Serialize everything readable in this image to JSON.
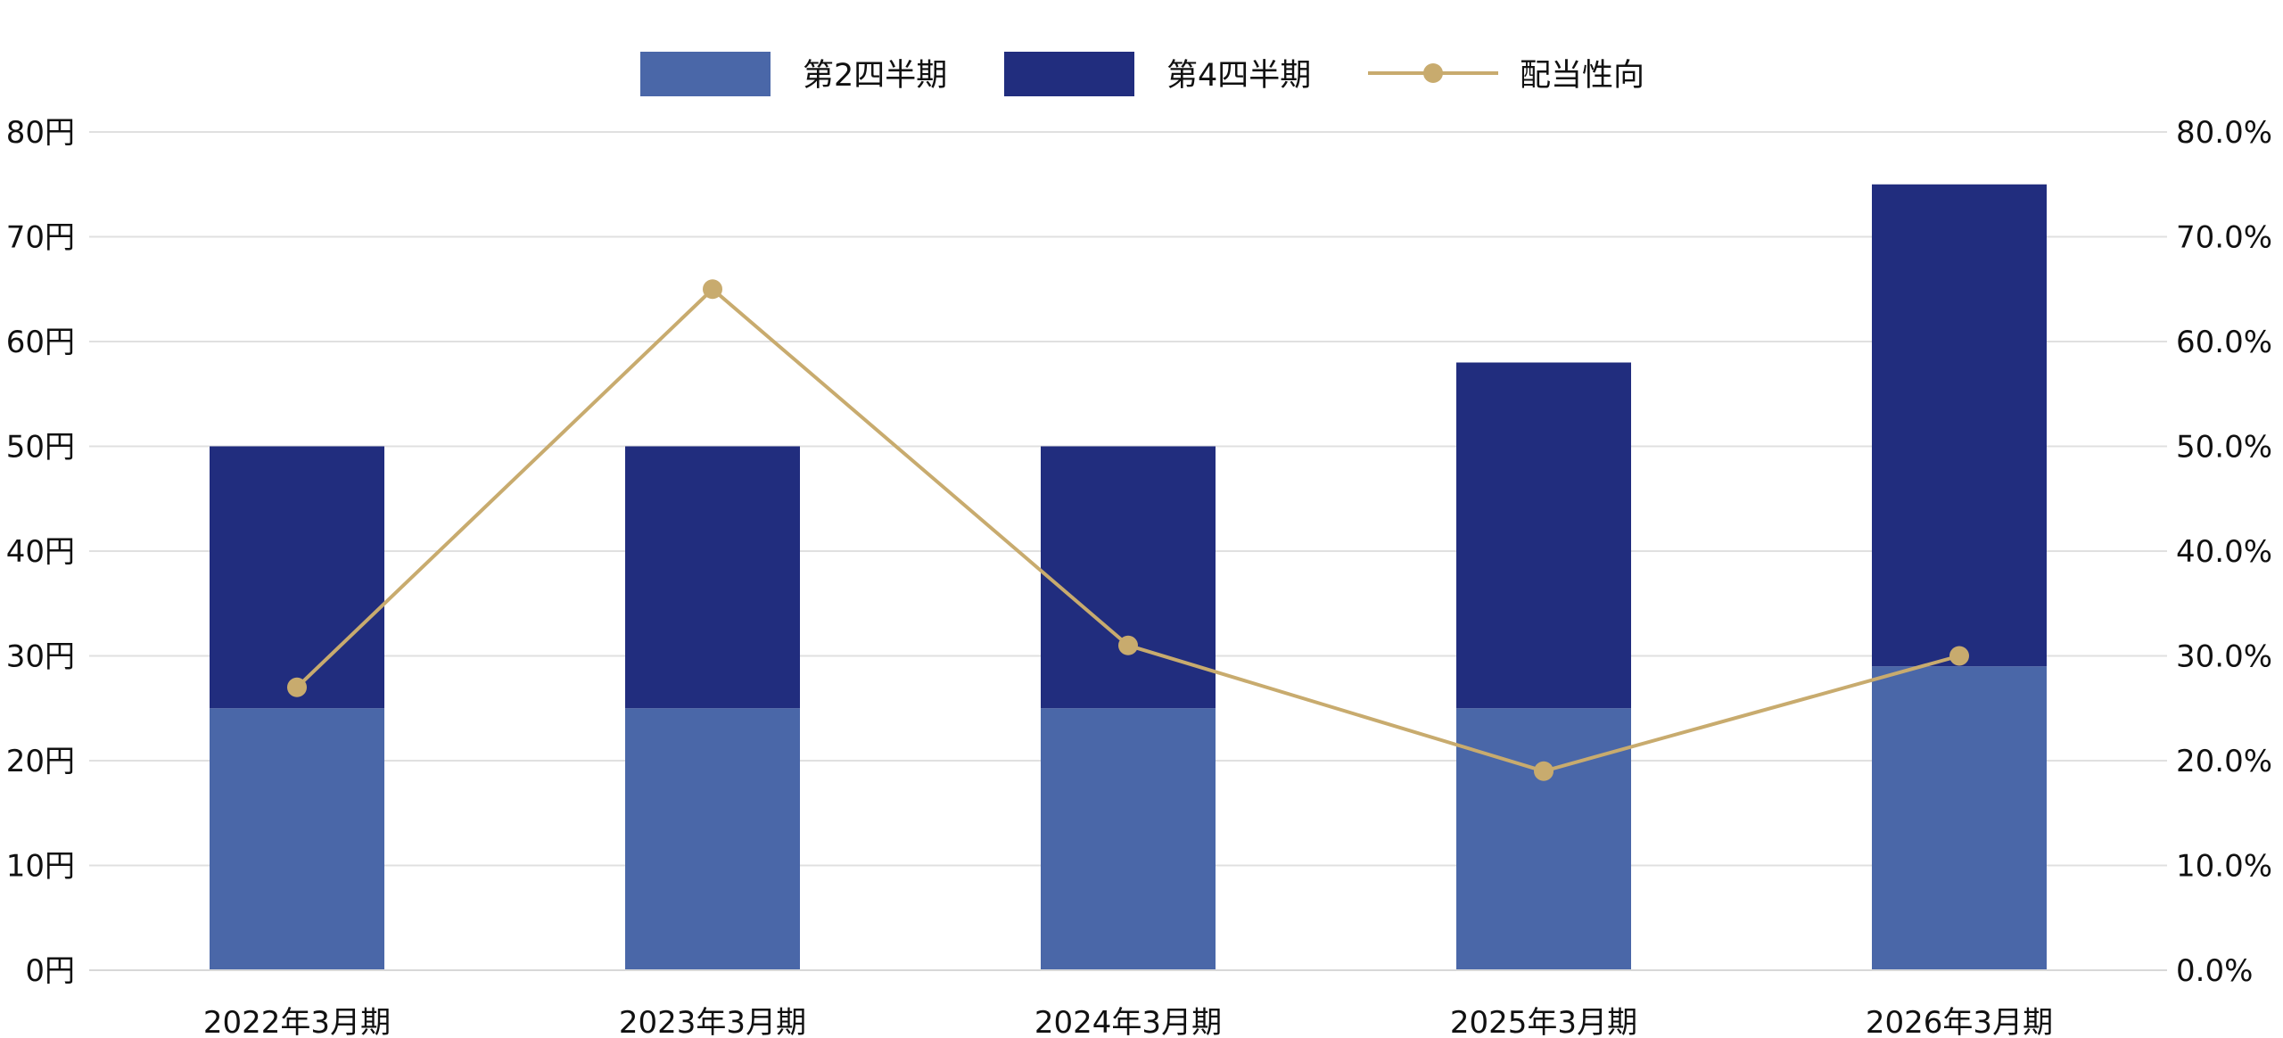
{
  "chart_data": {
    "type": "bar",
    "stacked": true,
    "categories": [
      "2022年3月期",
      "2023年3月期",
      "2024年3月期",
      "2025年3月期",
      "2026年3月期"
    ],
    "series": [
      {
        "name": "第2四半期",
        "type": "bar",
        "axis": "left",
        "color": "#4a67a8",
        "values": [
          25,
          25,
          25,
          25,
          29
        ]
      },
      {
        "name": "第4四半期",
        "type": "bar",
        "axis": "left",
        "color": "#212d7e",
        "values": [
          25,
          25,
          25,
          33,
          46
        ]
      },
      {
        "name": "配当性向",
        "type": "line",
        "axis": "right",
        "color": "#c8ab6e",
        "values": [
          27.0,
          65.0,
          31.0,
          19.0,
          30.0
        ]
      }
    ],
    "y_left": {
      "range": [
        0,
        80
      ],
      "ticks": [
        0,
        10,
        20,
        30,
        40,
        50,
        60,
        70,
        80
      ],
      "tick_labels": [
        "0円",
        "10円",
        "20円",
        "30円",
        "40円",
        "50円",
        "60円",
        "70円",
        "80円"
      ]
    },
    "y_right": {
      "range": [
        0,
        80
      ],
      "ticks": [
        0,
        10,
        20,
        30,
        40,
        50,
        60,
        70,
        80
      ],
      "tick_labels": [
        "0.0%",
        "10.0%",
        "20.0%",
        "30.0%",
        "40.0%",
        "50.0%",
        "60.0%",
        "70.0%",
        "80.0%"
      ]
    },
    "grid": true,
    "legend_position": "top-center",
    "title": "",
    "xlabel": "",
    "ylabel": ""
  }
}
